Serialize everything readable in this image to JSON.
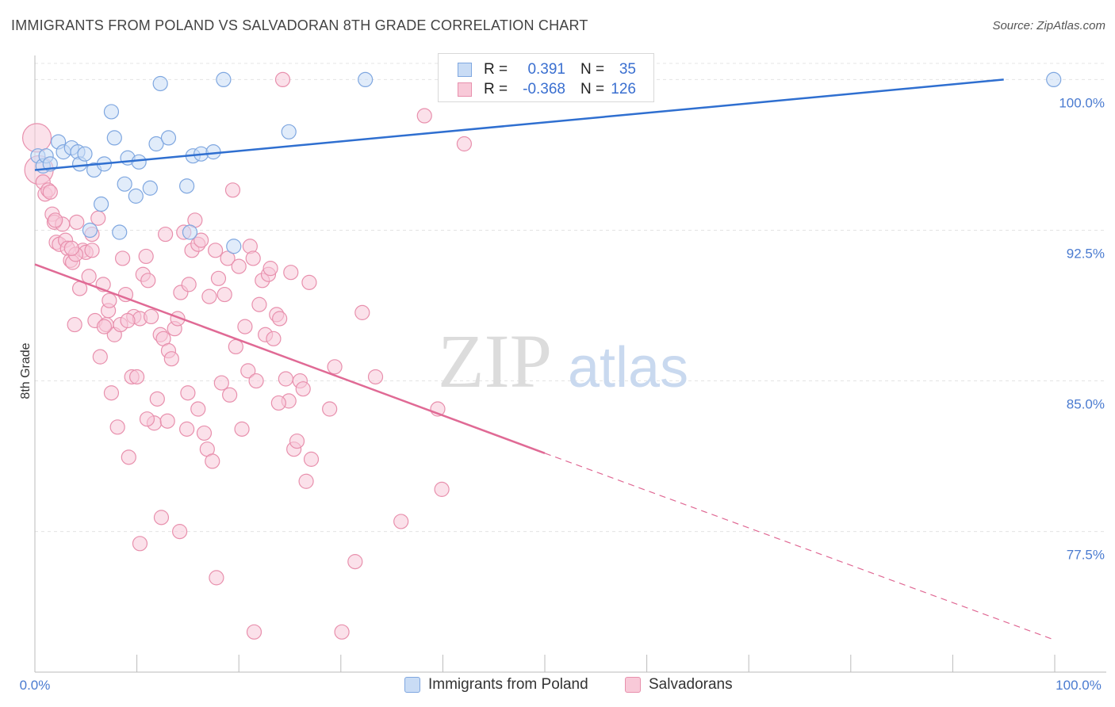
{
  "title": "IMMIGRANTS FROM POLAND VS SALVADORAN 8TH GRADE CORRELATION CHART",
  "source": "Source: ZipAtlas.com",
  "watermark": {
    "zip": "ZIP",
    "atlas": "atlas"
  },
  "colors": {
    "blue_fill": "#c9dcf5",
    "blue_stroke": "#7fa7e0",
    "blue_line": "#2f6fd0",
    "pink_fill": "#f8c9d8",
    "pink_stroke": "#e890ad",
    "pink_line": "#e06a95",
    "grid": "#e4e4e4",
    "axis_text": "#4a7bd0"
  },
  "legend": {
    "rows": [
      {
        "r_label": "R =",
        "r_value": "0.391",
        "n_label": "N =",
        "n_value": "35"
      },
      {
        "r_label": "R =",
        "r_value": "-0.368",
        "n_label": "N =",
        "n_value": "126"
      }
    ]
  },
  "bottom_legend": [
    "Immigrants from Poland",
    "Salvadorans"
  ],
  "chart_data": {
    "type": "scatter",
    "title": "IMMIGRANTS FROM POLAND VS SALVADORAN 8TH GRADE CORRELATION CHART",
    "xlabel": "",
    "ylabel": "8th Grade",
    "xlim": [
      0,
      100
    ],
    "ylim": [
      70.5,
      101.2
    ],
    "x_tick_labels": [
      "0.0%",
      "100.0%"
    ],
    "y_ticks": [
      77.5,
      85.0,
      92.5,
      100.0
    ],
    "y_tick_labels": [
      "77.5%",
      "85.0%",
      "92.5%",
      "100.0%"
    ],
    "grid": true,
    "legend_position": "top-center",
    "series": [
      {
        "name": "Immigrants from Poland",
        "color": "#7fa7e0",
        "trend": {
          "x": [
            0,
            95
          ],
          "y": [
            95.5,
            100.0
          ]
        },
        "points": [
          [
            0.3,
            96.2
          ],
          [
            0.8,
            95.7
          ],
          [
            1.1,
            96.2
          ],
          [
            1.5,
            95.8
          ],
          [
            2.3,
            96.9
          ],
          [
            2.8,
            96.4
          ],
          [
            3.6,
            96.6
          ],
          [
            4.2,
            96.4
          ],
          [
            4.4,
            95.8
          ],
          [
            4.9,
            96.3
          ],
          [
            5.8,
            95.5
          ],
          [
            6.5,
            93.8
          ],
          [
            6.8,
            95.8
          ],
          [
            5.4,
            92.5
          ],
          [
            7.5,
            98.4
          ],
          [
            7.8,
            97.1
          ],
          [
            8.3,
            92.4
          ],
          [
            8.8,
            94.8
          ],
          [
            9.1,
            96.1
          ],
          [
            9.9,
            94.2
          ],
          [
            10.2,
            95.9
          ],
          [
            11.3,
            94.6
          ],
          [
            11.9,
            96.8
          ],
          [
            12.3,
            99.8
          ],
          [
            13.1,
            97.1
          ],
          [
            14.9,
            94.7
          ],
          [
            15.5,
            96.2
          ],
          [
            16.3,
            96.3
          ],
          [
            17.5,
            96.4
          ],
          [
            18.5,
            100.0
          ],
          [
            19.5,
            91.7
          ],
          [
            24.9,
            97.4
          ],
          [
            32.4,
            100.0
          ],
          [
            99.9,
            100.0
          ],
          [
            15.2,
            92.4
          ]
        ]
      },
      {
        "name": "Salvadorans",
        "color": "#e890ad",
        "trend": {
          "x": [
            0,
            50
          ],
          "y": [
            90.8,
            81.4
          ]
        },
        "trend_dashed": {
          "x": [
            50,
            100
          ],
          "y": [
            81.4,
            72.1
          ]
        },
        "points": [
          [
            0.2,
            97.1
          ],
          [
            0.4,
            95.5
          ],
          [
            0.8,
            94.9
          ],
          [
            1.0,
            94.3
          ],
          [
            1.3,
            94.5
          ],
          [
            1.5,
            94.4
          ],
          [
            1.7,
            93.3
          ],
          [
            1.9,
            92.9
          ],
          [
            2.1,
            91.9
          ],
          [
            2.4,
            91.8
          ],
          [
            2.7,
            92.8
          ],
          [
            3.0,
            92.0
          ],
          [
            3.2,
            91.6
          ],
          [
            3.5,
            91.0
          ],
          [
            3.7,
            90.9
          ],
          [
            3.9,
            87.8
          ],
          [
            4.1,
            92.9
          ],
          [
            4.4,
            89.6
          ],
          [
            4.7,
            91.5
          ],
          [
            5.0,
            91.4
          ],
          [
            5.3,
            90.2
          ],
          [
            5.6,
            91.5
          ],
          [
            5.9,
            88.0
          ],
          [
            6.2,
            93.1
          ],
          [
            6.4,
            86.2
          ],
          [
            6.7,
            89.8
          ],
          [
            7.0,
            87.8
          ],
          [
            7.2,
            88.5
          ],
          [
            7.5,
            84.4
          ],
          [
            7.8,
            87.3
          ],
          [
            8.1,
            82.7
          ],
          [
            8.4,
            87.8
          ],
          [
            8.6,
            91.1
          ],
          [
            8.9,
            89.3
          ],
          [
            9.2,
            81.2
          ],
          [
            9.5,
            85.2
          ],
          [
            9.7,
            88.2
          ],
          [
            10.0,
            85.2
          ],
          [
            10.3,
            88.1
          ],
          [
            10.6,
            90.3
          ],
          [
            10.9,
            91.2
          ],
          [
            11.1,
            90.0
          ],
          [
            11.4,
            88.2
          ],
          [
            11.7,
            82.9
          ],
          [
            12.0,
            84.1
          ],
          [
            12.3,
            87.3
          ],
          [
            12.6,
            87.1
          ],
          [
            12.8,
            92.3
          ],
          [
            13.1,
            86.5
          ],
          [
            13.4,
            86.1
          ],
          [
            13.7,
            87.6
          ],
          [
            14.0,
            88.1
          ],
          [
            14.3,
            89.4
          ],
          [
            14.6,
            92.4
          ],
          [
            14.9,
            82.6
          ],
          [
            15.1,
            89.8
          ],
          [
            15.4,
            91.5
          ],
          [
            15.7,
            93.0
          ],
          [
            16.0,
            91.8
          ],
          [
            16.3,
            92.0
          ],
          [
            16.6,
            82.4
          ],
          [
            16.9,
            81.6
          ],
          [
            17.1,
            89.2
          ],
          [
            17.4,
            81.0
          ],
          [
            17.7,
            91.5
          ],
          [
            18.0,
            90.1
          ],
          [
            18.3,
            84.9
          ],
          [
            18.6,
            89.3
          ],
          [
            18.9,
            91.1
          ],
          [
            19.1,
            84.3
          ],
          [
            19.4,
            94.5
          ],
          [
            19.7,
            86.7
          ],
          [
            20.0,
            90.7
          ],
          [
            20.3,
            82.6
          ],
          [
            20.6,
            87.7
          ],
          [
            20.9,
            85.5
          ],
          [
            21.1,
            91.7
          ],
          [
            21.4,
            91.1
          ],
          [
            21.7,
            85.0
          ],
          [
            22.0,
            88.8
          ],
          [
            22.3,
            90.0
          ],
          [
            22.6,
            87.3
          ],
          [
            22.9,
            90.3
          ],
          [
            23.1,
            90.6
          ],
          [
            23.4,
            87.1
          ],
          [
            23.7,
            88.3
          ],
          [
            24.0,
            88.1
          ],
          [
            24.3,
            100.0
          ],
          [
            24.6,
            85.1
          ],
          [
            24.9,
            84.0
          ],
          [
            25.1,
            90.4
          ],
          [
            25.4,
            81.6
          ],
          [
            25.7,
            82.0
          ],
          [
            26.0,
            85.0
          ],
          [
            26.3,
            84.6
          ],
          [
            26.6,
            80.0
          ],
          [
            26.9,
            89.9
          ],
          [
            27.1,
            81.1
          ],
          [
            28.9,
            83.6
          ],
          [
            29.4,
            85.7
          ],
          [
            31.4,
            76.0
          ],
          [
            32.1,
            88.4
          ],
          [
            33.4,
            85.2
          ],
          [
            35.9,
            78.0
          ],
          [
            38.2,
            98.2
          ],
          [
            39.5,
            83.6
          ],
          [
            39.9,
            79.6
          ],
          [
            42.1,
            96.8
          ],
          [
            21.5,
            72.5
          ],
          [
            17.8,
            75.2
          ],
          [
            14.2,
            77.5
          ],
          [
            12.4,
            78.2
          ],
          [
            10.3,
            76.9
          ],
          [
            6.8,
            87.7
          ],
          [
            4.0,
            91.3
          ],
          [
            9.1,
            88.0
          ],
          [
            11.0,
            83.1
          ],
          [
            13.0,
            83.0
          ],
          [
            16.0,
            83.6
          ],
          [
            30.1,
            72.5
          ],
          [
            23.9,
            83.9
          ],
          [
            2.0,
            93.0
          ],
          [
            3.6,
            91.6
          ],
          [
            5.6,
            92.3
          ],
          [
            7.3,
            89.0
          ],
          [
            15.0,
            84.4
          ]
        ]
      }
    ]
  }
}
